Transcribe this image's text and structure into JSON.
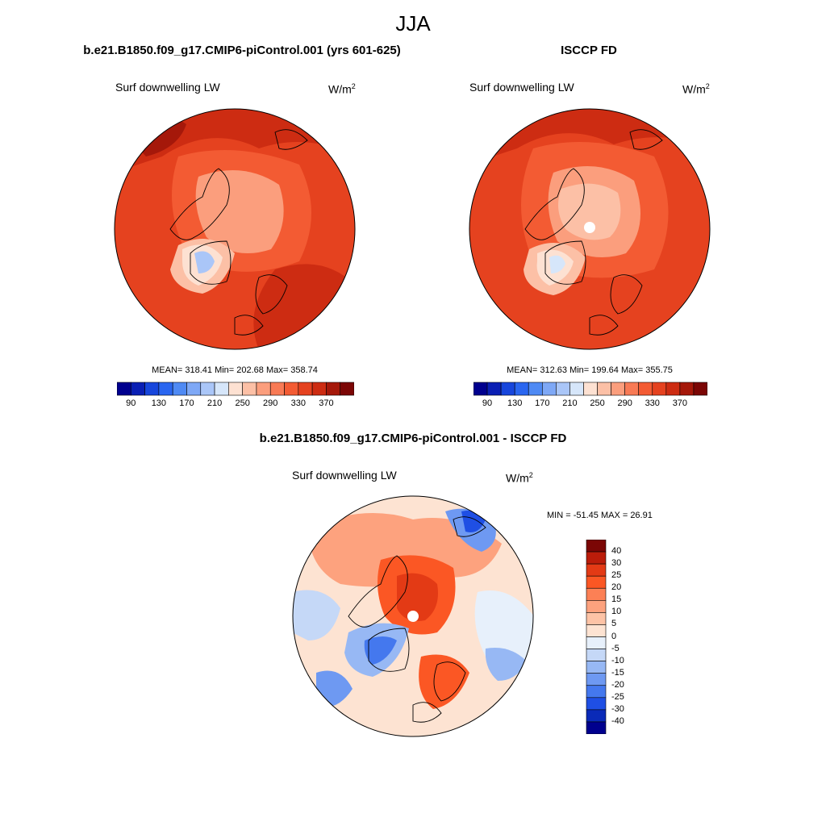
{
  "figure": {
    "season": "JJA"
  },
  "top_left": {
    "title": "b.e21.B1850.f09_g17.CMIP6-piControl.001 (yrs 601-625)",
    "variable": "Surf downwelling LW",
    "units": "W/m",
    "units_exp": "2",
    "stats": "MEAN= 318.41  Min= 202.68  Max= 358.74",
    "has_pole_hole": false
  },
  "top_right": {
    "title": "ISCCP FD",
    "variable": "Surf downwelling LW",
    "units": "W/m",
    "units_exp": "2",
    "stats": "MEAN= 312.63  Min= 199.64  Max= 355.75",
    "has_pole_hole": true
  },
  "bottom": {
    "title": "b.e21.B1850.f09_g17.CMIP6-piControl.001 - ISCCP FD",
    "variable": "Surf downwelling LW",
    "units": "W/m",
    "units_exp": "2",
    "stats": "MIN = -51.45 MAX =  26.91",
    "has_pole_hole": true
  },
  "abs_colorbar": {
    "labels": [
      "90",
      "130",
      "170",
      "210",
      "250",
      "290",
      "330",
      "370"
    ],
    "colors": [
      "#00008e",
      "#0a1fb4",
      "#1746dc",
      "#2a66f0",
      "#4f8af4",
      "#7ea8f6",
      "#aac6f8",
      "#d6e6fa",
      "#fde1d2",
      "#fcc0a6",
      "#fb9e7d",
      "#f87a55",
      "#f35b33",
      "#e5421f",
      "#cd2c12",
      "#a5180a",
      "#7b0605"
    ]
  },
  "diff_colorbar": {
    "labels": [
      "40",
      "30",
      "25",
      "20",
      "15",
      "10",
      "5",
      "0",
      "-5",
      "-10",
      "-15",
      "-20",
      "-25",
      "-30",
      "-40"
    ],
    "colors": [
      "#7b0605",
      "#bb1c0a",
      "#e33a15",
      "#fb5724",
      "#fc8055",
      "#fda27e",
      "#fdc3a6",
      "#fde3d2",
      "#e7f0fb",
      "#c5d8f7",
      "#97b8f4",
      "#6e99f2",
      "#4478ee",
      "#1f4fe4",
      "#0a2ab8",
      "#00008e"
    ]
  },
  "map_colors": {
    "ocean_base": "#e34a1f",
    "land_outline": "#000000",
    "diff_base": "#fbc8ad"
  }
}
